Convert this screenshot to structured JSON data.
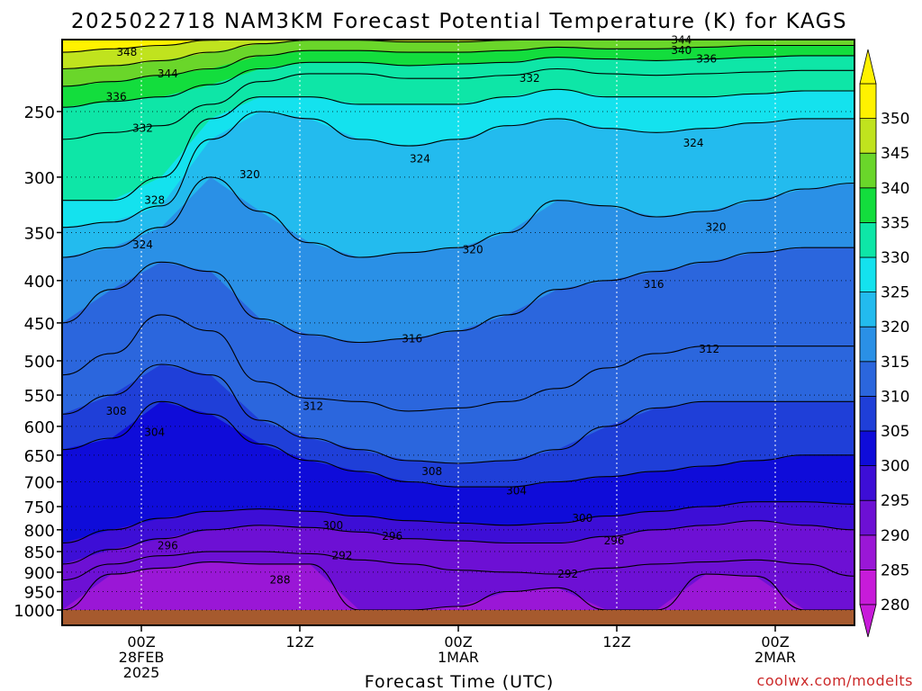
{
  "chart_data": {
    "type": "heatmap",
    "title": "2025022718 NAM3KM Forecast Potential Temperature (K) for KAGS",
    "xlabel": "Forecast Time (UTC)",
    "ylabel": "",
    "x_ticks": [
      {
        "hour": 6,
        "lines": [
          "00Z",
          "28FEB",
          "2025"
        ]
      },
      {
        "hour": 18,
        "lines": [
          "12Z"
        ]
      },
      {
        "hour": 30,
        "lines": [
          "00Z",
          "1MAR"
        ]
      },
      {
        "hour": 42,
        "lines": [
          "12Z"
        ]
      },
      {
        "hour": 54,
        "lines": [
          "00Z",
          "2MAR"
        ]
      }
    ],
    "xlim": [
      0,
      60
    ],
    "y_ticks": [
      250,
      300,
      350,
      400,
      450,
      500,
      550,
      600,
      650,
      700,
      750,
      800,
      850,
      900,
      950,
      1000
    ],
    "y_tick_labels": [
      "250",
      "300",
      "350",
      "400",
      "450",
      "500",
      "550",
      "600",
      "650",
      "700",
      "750",
      "800",
      "850",
      "900",
      "950",
      "1000"
    ],
    "ylim": [
      1000,
      200
    ],
    "y_scale": "log-pressure",
    "grid": true,
    "colorbar": {
      "levels": [
        280,
        285,
        290,
        295,
        300,
        305,
        310,
        315,
        320,
        325,
        330,
        335,
        340,
        345,
        350
      ],
      "level_labels": [
        "280",
        "285",
        "290",
        "295",
        "300",
        "305",
        "310",
        "315",
        "320",
        "325",
        "330",
        "335",
        "340",
        "345",
        "350"
      ],
      "colors": [
        "#c71bd9",
        "#9a17d6",
        "#6d10d4",
        "#3d0ed6",
        "#0f0cd9",
        "#1f3fd8",
        "#2b66dd",
        "#2a90e6",
        "#23bbee",
        "#14e2ee",
        "#0ee6a7",
        "#13dd3d",
        "#6ad62a",
        "#c0e31e",
        "#fff200"
      ],
      "extend": "both"
    },
    "isotherms": [
      {
        "theta": 288,
        "pressure": [
          1000,
          905,
          890,
          875,
          880,
          880,
          1000,
          1000,
          990,
          950,
          940,
          1000,
          1000,
          905,
          910,
          1000,
          1000
        ]
      },
      {
        "theta": 292,
        "pressure": [
          920,
          880,
          860,
          850,
          850,
          855,
          870,
          880,
          895,
          900,
          905,
          890,
          880,
          875,
          870,
          880,
          910
        ]
      },
      {
        "theta": 296,
        "pressure": [
          880,
          845,
          820,
          800,
          790,
          795,
          805,
          820,
          825,
          830,
          830,
          815,
          800,
          790,
          780,
          790,
          800
        ]
      },
      {
        "theta": 300,
        "pressure": [
          830,
          800,
          775,
          760,
          755,
          760,
          770,
          780,
          785,
          790,
          785,
          770,
          760,
          750,
          740,
          740,
          745
        ]
      },
      {
        "theta": 304,
        "pressure": [
          640,
          620,
          560,
          580,
          630,
          660,
          680,
          700,
          710,
          710,
          700,
          690,
          680,
          670,
          660,
          650,
          650
        ]
      },
      {
        "theta": 308,
        "pressure": [
          580,
          550,
          505,
          520,
          590,
          620,
          640,
          660,
          665,
          660,
          640,
          600,
          570,
          560,
          560,
          560,
          560
        ]
      },
      {
        "theta": 312,
        "pressure": [
          520,
          490,
          440,
          460,
          530,
          555,
          560,
          575,
          570,
          560,
          540,
          510,
          490,
          480,
          480,
          480,
          480
        ]
      },
      {
        "theta": 316,
        "pressure": [
          450,
          410,
          380,
          390,
          445,
          465,
          475,
          470,
          460,
          440,
          410,
          400,
          390,
          380,
          370,
          365,
          365
        ]
      },
      {
        "theta": 320,
        "pressure": [
          375,
          365,
          345,
          300,
          330,
          360,
          375,
          370,
          365,
          350,
          320,
          325,
          335,
          330,
          320,
          310,
          305
        ]
      },
      {
        "theta": 324,
        "pressure": [
          345,
          340,
          325,
          270,
          250,
          255,
          270,
          275,
          270,
          260,
          255,
          262,
          265,
          262,
          258,
          255,
          255
        ]
      },
      {
        "theta": 328,
        "pressure": [
          320,
          320,
          300,
          255,
          240,
          240,
          245,
          245,
          245,
          240,
          235,
          240,
          240,
          240,
          238,
          236,
          236
        ]
      },
      {
        "theta": 332,
        "pressure": [
          270,
          265,
          260,
          245,
          230,
          225,
          225,
          228,
          228,
          226,
          222,
          225,
          226,
          225,
          224,
          223,
          223
        ]
      },
      {
        "theta": 336,
        "pressure": [
          247,
          243,
          240,
          232,
          222,
          218,
          218,
          220,
          219,
          218,
          215,
          216,
          217,
          216,
          215,
          214,
          214
        ]
      },
      {
        "theta": 340,
        "pressure": [
          233,
          230,
          226,
          222,
          214,
          211,
          211,
          212,
          212,
          211,
          209,
          210,
          210,
          209,
          208,
          208,
          208
        ]
      },
      {
        "theta": 344,
        "pressure": [
          222,
          220,
          217,
          212,
          207,
          205,
          205,
          206,
          206,
          205,
          204,
          204,
          204,
          203,
          203,
          203,
          203
        ]
      },
      {
        "theta": 348,
        "pressure": [
          212,
          210,
          208,
          205,
          202,
          201,
          201,
          201,
          201,
          201,
          201,
          201,
          201,
          201,
          201,
          201,
          201
        ]
      }
    ],
    "isotherm_hours": [
      0,
      3.75,
      7.5,
      11.25,
      15,
      18.75,
      22.5,
      26.25,
      30,
      33.75,
      37.5,
      41.25,
      45,
      48.75,
      52.5,
      56.25,
      60
    ],
    "contour_labels": [
      {
        "text": "348",
        "hour": 4.9,
        "pressure": 212
      },
      {
        "text": "344",
        "hour": 8.0,
        "pressure": 225
      },
      {
        "text": "344",
        "hour": 46.9,
        "pressure": 205
      },
      {
        "text": "340",
        "hour": 46.9,
        "pressure": 211
      },
      {
        "text": "336",
        "hour": 48.8,
        "pressure": 216
      },
      {
        "text": "336",
        "hour": 4.1,
        "pressure": 240
      },
      {
        "text": "332",
        "hour": 6.1,
        "pressure": 262
      },
      {
        "text": "332",
        "hour": 35.4,
        "pressure": 228
      },
      {
        "text": "324",
        "hour": 27.1,
        "pressure": 285
      },
      {
        "text": "324",
        "hour": 47.8,
        "pressure": 273
      },
      {
        "text": "328",
        "hour": 7.0,
        "pressure": 320
      },
      {
        "text": "320",
        "hour": 14.2,
        "pressure": 298
      },
      {
        "text": "320",
        "hour": 31.1,
        "pressure": 367
      },
      {
        "text": "320",
        "hour": 49.5,
        "pressure": 345
      },
      {
        "text": "324",
        "hour": 6.1,
        "pressure": 362
      },
      {
        "text": "316",
        "hour": 44.8,
        "pressure": 404
      },
      {
        "text": "316",
        "hour": 26.5,
        "pressure": 470
      },
      {
        "text": "312",
        "hour": 49.0,
        "pressure": 484
      },
      {
        "text": "312",
        "hour": 19.0,
        "pressure": 567
      },
      {
        "text": "308",
        "hour": 4.1,
        "pressure": 575
      },
      {
        "text": "304",
        "hour": 7.0,
        "pressure": 610
      },
      {
        "text": "308",
        "hour": 28.0,
        "pressure": 680
      },
      {
        "text": "304",
        "hour": 34.4,
        "pressure": 718
      },
      {
        "text": "300",
        "hour": 39.4,
        "pressure": 775
      },
      {
        "text": "300",
        "hour": 20.5,
        "pressure": 790
      },
      {
        "text": "296",
        "hour": 25.0,
        "pressure": 815
      },
      {
        "text": "296",
        "hour": 41.8,
        "pressure": 825
      },
      {
        "text": "296",
        "hour": 8.0,
        "pressure": 836
      },
      {
        "text": "292",
        "hour": 21.2,
        "pressure": 860
      },
      {
        "text": "292",
        "hour": 38.3,
        "pressure": 905
      },
      {
        "text": "288",
        "hour": 16.5,
        "pressure": 920
      }
    ]
  },
  "watermark": "coolwx.com/modelts",
  "ground_color": "#a65a2e"
}
